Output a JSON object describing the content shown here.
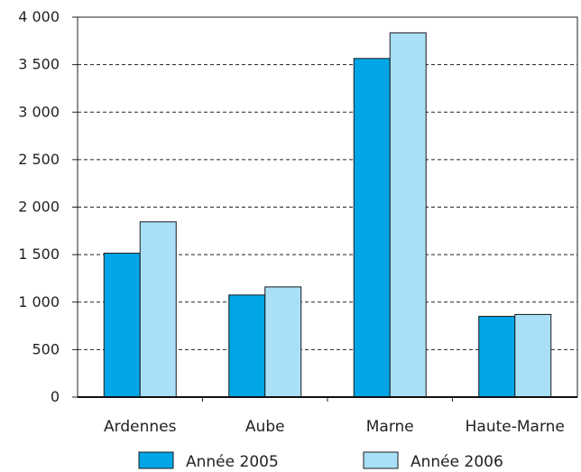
{
  "chart_data": {
    "type": "bar",
    "categories": [
      "Ardennes",
      "Aube",
      "Marne",
      "Haute-Marne"
    ],
    "series": [
      {
        "name": "Année 2005",
        "values": [
          1515,
          1075,
          3565,
          850
        ],
        "color": "#00a6e6"
      },
      {
        "name": "Année 2006",
        "values": [
          1845,
          1160,
          3835,
          870
        ],
        "color": "#a9e0f8"
      }
    ],
    "yticks": [
      "0",
      "500",
      "1 000",
      "1 500",
      "2 000",
      "2 500",
      "3 000",
      "3 500",
      "4 000"
    ],
    "ylim": [
      0,
      4000
    ],
    "ystep": 500,
    "grid": "dashed horizontal",
    "legend_position": "bottom",
    "title": "",
    "xlabel": "",
    "ylabel": ""
  }
}
